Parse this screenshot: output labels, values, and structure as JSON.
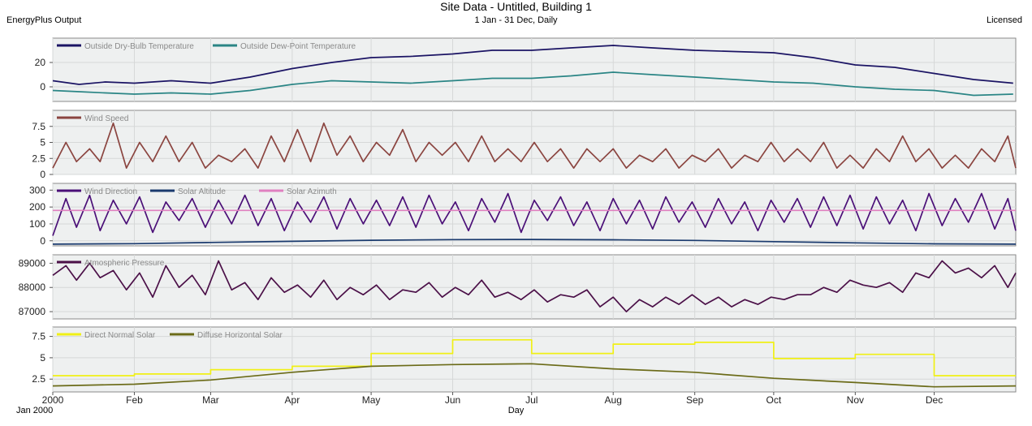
{
  "header": {
    "title": "Site Data - Untitled, Building 1",
    "subtitle": "1 Jan - 31 Dec, Daily",
    "left": "EnergyPlus Output",
    "right": "Licensed"
  },
  "chart_data": {
    "type": "line",
    "x_axis": {
      "label": "Day",
      "period_label": "Jan 2000",
      "ticks": [
        "2000",
        "Feb",
        "Mar",
        "Apr",
        "May",
        "Jun",
        "Jul",
        "Aug",
        "Sep",
        "Oct",
        "Nov",
        "Dec"
      ],
      "tick_days": [
        0,
        31,
        60,
        91,
        121,
        152,
        182,
        213,
        244,
        274,
        305,
        335
      ],
      "range": [
        0,
        366
      ]
    },
    "panels": [
      {
        "ylim": [
          -12,
          40
        ],
        "yticks": [
          0,
          20
        ],
        "series": [
          {
            "name": "Outside Dry-Bulb Temperature",
            "color": "#1b1464",
            "x": [
              0,
              10,
              20,
              31,
              45,
              60,
              75,
              91,
              106,
              121,
              136,
              152,
              167,
              182,
              197,
              213,
              228,
              244,
              259,
              274,
              289,
              305,
              320,
              335,
              350,
              365
            ],
            "y": [
              5,
              2,
              4,
              3,
              5,
              3,
              8,
              15,
              20,
              24,
              25,
              27,
              30,
              30,
              32,
              34,
              32,
              30,
              29,
              28,
              24,
              18,
              16,
              11,
              6,
              3
            ]
          },
          {
            "name": "Outside Dew-Point Temperature",
            "color": "#2a8585",
            "x": [
              0,
              10,
              20,
              31,
              45,
              60,
              75,
              91,
              106,
              121,
              136,
              152,
              167,
              182,
              197,
              213,
              228,
              244,
              259,
              274,
              289,
              305,
              320,
              335,
              350,
              365
            ],
            "y": [
              -3,
              -4,
              -5,
              -6,
              -5,
              -6,
              -3,
              2,
              5,
              4,
              3,
              5,
              7,
              7,
              9,
              12,
              10,
              8,
              6,
              4,
              3,
              0,
              -2,
              -3,
              -7,
              -6
            ]
          }
        ]
      },
      {
        "ylim": [
          0,
          10
        ],
        "yticks": [
          0,
          2.5,
          5.0,
          7.5
        ],
        "series": [
          {
            "name": "Wind Speed",
            "color": "#8b4540",
            "x": [
              0,
              5,
              9,
              14,
              18,
              23,
              28,
              33,
              38,
              43,
              48,
              53,
              58,
              63,
              68,
              73,
              78,
              83,
              88,
              93,
              98,
              103,
              108,
              113,
              118,
              123,
              128,
              133,
              138,
              143,
              148,
              153,
              158,
              163,
              168,
              173,
              178,
              183,
              188,
              193,
              198,
              203,
              208,
              213,
              218,
              223,
              228,
              233,
              238,
              243,
              248,
              253,
              258,
              263,
              268,
              273,
              278,
              283,
              288,
              293,
              298,
              303,
              308,
              313,
              318,
              323,
              328,
              333,
              338,
              343,
              348,
              353,
              358,
              363,
              366
            ],
            "y": [
              1,
              5,
              2,
              4,
              2,
              8,
              1,
              5,
              2,
              6,
              2,
              5,
              1,
              3,
              2,
              4,
              1,
              6,
              2,
              7,
              2,
              8,
              3,
              6,
              2,
              5,
              3,
              7,
              2,
              5,
              3,
              5,
              2,
              6,
              2,
              4,
              2,
              5,
              2,
              4,
              1,
              4,
              2,
              4,
              1,
              3,
              2,
              4,
              1,
              3,
              2,
              4,
              1,
              3,
              2,
              5,
              2,
              4,
              2,
              5,
              1,
              3,
              1,
              4,
              2,
              6,
              2,
              4,
              1,
              3,
              1,
              4,
              2,
              6,
              1
            ]
          }
        ]
      },
      {
        "ylim": [
          -30,
          340
        ],
        "yticks": [
          0,
          100,
          200,
          300
        ],
        "series": [
          {
            "name": "Wind Direction",
            "color": "#4b1078",
            "x": [
              0,
              5,
              9,
              14,
              18,
              23,
              28,
              33,
              38,
              43,
              48,
              53,
              58,
              63,
              68,
              73,
              78,
              83,
              88,
              93,
              98,
              103,
              108,
              113,
              118,
              123,
              128,
              133,
              138,
              143,
              148,
              153,
              158,
              163,
              168,
              173,
              178,
              183,
              188,
              193,
              198,
              203,
              208,
              213,
              218,
              223,
              228,
              233,
              238,
              243,
              248,
              253,
              258,
              263,
              268,
              273,
              278,
              283,
              288,
              293,
              298,
              303,
              308,
              313,
              318,
              323,
              328,
              333,
              338,
              343,
              348,
              353,
              358,
              363,
              366
            ],
            "y": [
              30,
              250,
              80,
              270,
              60,
              240,
              100,
              260,
              50,
              230,
              120,
              250,
              80,
              240,
              100,
              270,
              90,
              250,
              60,
              230,
              110,
              260,
              70,
              250,
              100,
              240,
              90,
              260,
              80,
              270,
              100,
              230,
              60,
              250,
              110,
              280,
              50,
              240,
              120,
              260,
              90,
              230,
              60,
              250,
              100,
              240,
              70,
              260,
              110,
              230,
              80,
              250,
              100,
              230,
              60,
              240,
              110,
              250,
              80,
              260,
              90,
              270,
              70,
              260,
              100,
              240,
              60,
              280,
              90,
              250,
              110,
              280,
              70,
              250,
              60
            ]
          },
          {
            "name": "Solar Altitude",
            "color": "#1a3a6e",
            "x": [
              0,
              31,
              60,
              91,
              121,
              152,
              182,
              213,
              244,
              274,
              305,
              335,
              366
            ],
            "y": [
              -20,
              -17,
              -10,
              -3,
              3,
              7,
              8,
              6,
              2,
              -5,
              -12,
              -18,
              -20
            ]
          },
          {
            "name": "Solar Azimuth",
            "color": "#e080c0",
            "x": [
              0,
              366
            ],
            "y": [
              180,
              180
            ]
          }
        ]
      },
      {
        "ylim": [
          86700,
          89350
        ],
        "yticks": [
          87000,
          88000,
          89000
        ],
        "series": [
          {
            "name": "Atmospheric Pressure",
            "color": "#4b1048",
            "x": [
              0,
              5,
              9,
              14,
              18,
              23,
              28,
              33,
              38,
              43,
              48,
              53,
              58,
              63,
              68,
              73,
              78,
              83,
              88,
              93,
              98,
              103,
              108,
              113,
              118,
              123,
              128,
              133,
              138,
              143,
              148,
              153,
              158,
              163,
              168,
              173,
              178,
              183,
              188,
              193,
              198,
              203,
              208,
              213,
              218,
              223,
              228,
              233,
              238,
              243,
              248,
              253,
              258,
              263,
              268,
              273,
              278,
              283,
              288,
              293,
              298,
              303,
              308,
              313,
              318,
              323,
              328,
              333,
              338,
              343,
              348,
              353,
              358,
              363,
              366
            ],
            "y": [
              88500,
              88900,
              88300,
              89000,
              88400,
              88700,
              87900,
              88600,
              87600,
              88900,
              88000,
              88500,
              87700,
              89100,
              87900,
              88200,
              87500,
              88400,
              87800,
              88100,
              87600,
              88300,
              87500,
              88000,
              87700,
              88100,
              87500,
              87900,
              87800,
              88200,
              87600,
              88000,
              87700,
              88300,
              87600,
              87800,
              87500,
              87900,
              87400,
              87700,
              87600,
              87900,
              87200,
              87600,
              87000,
              87500,
              87200,
              87600,
              87300,
              87700,
              87300,
              87600,
              87200,
              87500,
              87300,
              87600,
              87500,
              87700,
              87700,
              88000,
              87800,
              88300,
              88100,
              88000,
              88200,
              87800,
              88600,
              88400,
              89100,
              88600,
              88800,
              88400,
              88900,
              88000,
              88600
            ]
          }
        ]
      },
      {
        "ylim": [
          1,
          8.6
        ],
        "yticks": [
          2.5,
          5.0,
          7.5
        ],
        "series": [
          {
            "name": "Direct Normal Solar",
            "color": "#f0f016",
            "x": [
              0,
              31,
              31,
              60,
              60,
              91,
              91,
              121,
              121,
              152,
              152,
              182,
              182,
              213,
              213,
              244,
              244,
              274,
              274,
              305,
              305,
              335,
              335,
              366
            ],
            "y": [
              2.9,
              2.9,
              3.1,
              3.1,
              3.6,
              3.6,
              4.0,
              4.0,
              5.5,
              5.5,
              7.1,
              7.1,
              5.5,
              5.5,
              6.6,
              6.6,
              6.8,
              6.8,
              4.9,
              4.9,
              5.4,
              5.4,
              2.9,
              2.9
            ]
          },
          {
            "name": "Diffuse Horizontal Solar",
            "color": "#6b6b18",
            "x": [
              0,
              31,
              60,
              91,
              121,
              152,
              182,
              213,
              244,
              274,
              305,
              335,
              366
            ],
            "y": [
              1.7,
              1.9,
              2.4,
              3.3,
              4.0,
              4.2,
              4.3,
              3.7,
              3.3,
              2.6,
              2.1,
              1.6,
              1.7
            ]
          }
        ]
      }
    ]
  }
}
